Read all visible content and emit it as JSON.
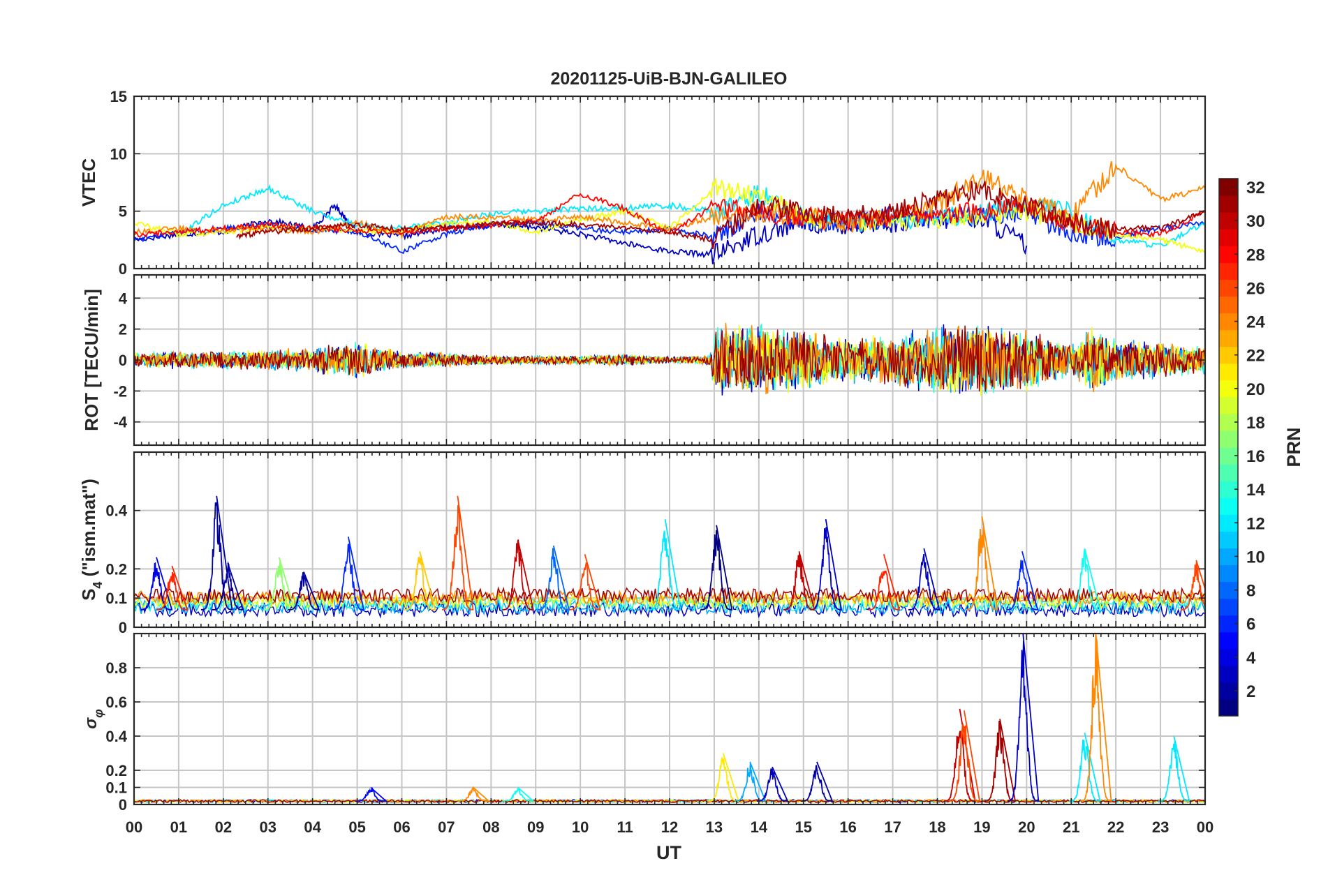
{
  "chart_data": {
    "type": "line",
    "title": "20201125-UiB-BJN-GALILEO",
    "xlabel": "UT",
    "x_tick_labels": [
      "00",
      "01",
      "02",
      "03",
      "04",
      "05",
      "06",
      "07",
      "08",
      "09",
      "10",
      "11",
      "12",
      "13",
      "14",
      "15",
      "16",
      "17",
      "18",
      "19",
      "20",
      "21",
      "22",
      "23",
      "00"
    ],
    "xlim_hours": [
      0,
      24
    ],
    "colorbar": {
      "label": "PRN",
      "colormap": "jet",
      "range": [
        1,
        32
      ],
      "tick_labels": [
        "2",
        "4",
        "6",
        "8",
        "10",
        "12",
        "14",
        "16",
        "18",
        "20",
        "22",
        "24",
        "26",
        "28",
        "30",
        "32"
      ]
    },
    "panels": [
      {
        "id": "vtec",
        "ylabel": "VTEC",
        "ylim": [
          0,
          15
        ],
        "ytick_labels": [
          "0",
          "5",
          "10",
          "15"
        ],
        "series": [
          {
            "prn": 3,
            "x": [
              0,
              1,
              2,
              3,
              4,
              4.5,
              5,
              6,
              7,
              8,
              9,
              10,
              11,
              12,
              13,
              14,
              15,
              16,
              17,
              18,
              19,
              20
            ],
            "y": [
              2.5,
              3,
              3.2,
              4.2,
              3.5,
              5.5,
              3.2,
              2.8,
              3.5,
              3.8,
              3.6,
              3,
              2.2,
              1.5,
              1.2,
              3,
              4,
              3.8,
              4,
              4.2,
              4.5,
              2
            ]
          },
          {
            "prn": 6,
            "x": [
              0,
              1,
              2,
              3,
              4,
              5,
              6,
              7,
              8,
              9,
              10,
              11,
              12,
              13,
              14,
              15,
              16,
              17,
              18,
              19,
              20,
              21,
              22,
              23,
              24
            ],
            "y": [
              2.5,
              3.2,
              3.5,
              3.8,
              3.4,
              3.2,
              1.5,
              3,
              3.8,
              4,
              3.5,
              3.2,
              3.4,
              2.8,
              5,
              4.2,
              4,
              4.5,
              4.3,
              4.6,
              5,
              3,
              2.8,
              3.5,
              4
            ]
          },
          {
            "prn": 12,
            "x": [
              1,
              2,
              3,
              4,
              5,
              6,
              7,
              8,
              9,
              10,
              11,
              12,
              13,
              14,
              15,
              16,
              17,
              18,
              19,
              20,
              21,
              22,
              23,
              24
            ],
            "y": [
              3,
              5.5,
              7,
              5,
              3.8,
              3.5,
              4,
              4.8,
              5,
              5.2,
              5.3,
              5.5,
              5,
              6.5,
              4.5,
              4,
              4.2,
              4.5,
              4.8,
              5.5,
              5,
              2.5,
              2,
              4
            ]
          },
          {
            "prn": 20,
            "x": [
              0,
              1,
              2,
              3,
              4,
              5,
              6,
              7,
              8,
              9,
              10,
              11,
              12,
              13,
              14,
              15,
              16,
              17,
              18,
              19,
              20,
              21,
              22,
              23,
              24
            ],
            "y": [
              4,
              3,
              3.2,
              3.6,
              3.5,
              3.3,
              3.3,
              4,
              4,
              3.2,
              4.2,
              5,
              3.5,
              7,
              6.5,
              4.5,
              4,
              4.2,
              4.4,
              4.6,
              5,
              4,
              3,
              2.5,
              1.5
            ]
          },
          {
            "prn": 24,
            "x": [
              0,
              1,
              2,
              3,
              4,
              5,
              6,
              7,
              8,
              9,
              10,
              11,
              12,
              13,
              14,
              15,
              16,
              17,
              18,
              19,
              20,
              21,
              22,
              23,
              24
            ],
            "y": [
              3.2,
              3.5,
              3.4,
              3.5,
              3.2,
              4,
              3,
              4.5,
              4.5,
              4.2,
              4.5,
              4,
              3.5,
              4.5,
              5,
              4.5,
              4,
              4.5,
              5.5,
              8,
              6,
              4.5,
              9,
              6,
              7
            ]
          },
          {
            "prn": 28,
            "x": [
              0,
              1,
              2,
              3,
              4,
              5,
              6,
              7,
              8,
              9,
              10,
              11,
              12,
              13,
              14,
              15,
              16,
              17,
              18,
              19,
              20,
              21,
              22,
              23,
              24
            ],
            "y": [
              3,
              3.2,
              3.5,
              3.8,
              3.6,
              3.3,
              3.2,
              3.5,
              3.8,
              4.2,
              6.5,
              5.2,
              3,
              5.5,
              5,
              4.5,
              4.2,
              4.5,
              4.8,
              5,
              5.5,
              4,
              3.2,
              3,
              5
            ]
          },
          {
            "prn": 31,
            "x": [
              2.3,
              3,
              4,
              5,
              6,
              7,
              8,
              9,
              10,
              11,
              12,
              13,
              14,
              15,
              16,
              17,
              18,
              19,
              20,
              21,
              22,
              23,
              24
            ],
            "y": [
              2.8,
              3.2,
              3.5,
              3.8,
              3.4,
              3.6,
              3.9,
              4,
              3.8,
              3.5,
              3.2,
              2.5,
              5.5,
              5,
              4.5,
              5,
              6,
              7,
              5.5,
              4,
              3.5,
              3.5,
              5
            ]
          }
        ]
      },
      {
        "id": "rot",
        "ylabel": "ROT [TECU/min]",
        "ylim": [
          -5.5,
          5.5
        ],
        "ytick_labels": [
          "-4",
          "-2",
          "0",
          "2",
          "4"
        ],
        "noise_envelope": {
          "hours": [
            0,
            1,
            2,
            3,
            4,
            5,
            6,
            7,
            8,
            9,
            10,
            11,
            12,
            12.9,
            13,
            14,
            15,
            16,
            17,
            18,
            19,
            20,
            21,
            21.5,
            22,
            23,
            24
          ],
          "amplitude": [
            0.5,
            0.6,
            0.6,
            0.7,
            0.9,
            1.2,
            0.6,
            0.5,
            0.3,
            0.3,
            0.3,
            0.4,
            0.2,
            0.3,
            2.5,
            2.5,
            2,
            1.6,
            1.8,
            2.4,
            2.6,
            2.2,
            1,
            2.5,
            1.5,
            1.2,
            1
          ]
        },
        "series": [
          {
            "prn": 3
          },
          {
            "prn": 10
          },
          {
            "prn": 14
          },
          {
            "prn": 20
          },
          {
            "prn": 24
          },
          {
            "prn": 31
          }
        ]
      },
      {
        "id": "s4",
        "ylabel": "S4 (\"ism.mat\")",
        "ylim": [
          0,
          0.6
        ],
        "ytick_labels": [
          "0",
          "0.1",
          "0.2",
          "0.4"
        ],
        "baseline": 0.06,
        "spikes": [
          {
            "prn": 4,
            "t": 0.5,
            "v": 0.24
          },
          {
            "prn": 27,
            "t": 0.85,
            "v": 0.21
          },
          {
            "prn": 2,
            "t": 1.85,
            "v": 0.45
          },
          {
            "prn": 2,
            "t": 2.1,
            "v": 0.22
          },
          {
            "prn": 17,
            "t": 3.25,
            "v": 0.24
          },
          {
            "prn": 2,
            "t": 3.8,
            "v": 0.19
          },
          {
            "prn": 6,
            "t": 4.8,
            "v": 0.31
          },
          {
            "prn": 22,
            "t": 6.4,
            "v": 0.26
          },
          {
            "prn": 26,
            "t": 7.25,
            "v": 0.45
          },
          {
            "prn": 30,
            "t": 8.6,
            "v": 0.3
          },
          {
            "prn": 8,
            "t": 9.4,
            "v": 0.28
          },
          {
            "prn": 26,
            "t": 10.1,
            "v": 0.25
          },
          {
            "prn": 12,
            "t": 11.9,
            "v": 0.37
          },
          {
            "prn": 1,
            "t": 13.05,
            "v": 0.35
          },
          {
            "prn": 3,
            "t": 15.5,
            "v": 0.37
          },
          {
            "prn": 30,
            "t": 14.9,
            "v": 0.26
          },
          {
            "prn": 27,
            "t": 16.8,
            "v": 0.25
          },
          {
            "prn": 3,
            "t": 17.7,
            "v": 0.27
          },
          {
            "prn": 24,
            "t": 19.0,
            "v": 0.38
          },
          {
            "prn": 6,
            "t": 19.9,
            "v": 0.26
          },
          {
            "prn": 13,
            "t": 21.3,
            "v": 0.27
          },
          {
            "prn": 26,
            "t": 23.8,
            "v": 0.23
          }
        ]
      },
      {
        "id": "sigma_phi",
        "ylabel": "σφ",
        "ylim": [
          0,
          1
        ],
        "ytick_labels": [
          "0",
          "0.1",
          "0.2",
          "0.4",
          "0.6",
          "0.8"
        ],
        "baseline": 0.02,
        "spikes": [
          {
            "prn": 5,
            "t": 5.3,
            "v": 0.1
          },
          {
            "prn": 24,
            "t": 7.6,
            "v": 0.1
          },
          {
            "prn": 13,
            "t": 8.6,
            "v": 0.1
          },
          {
            "prn": 21,
            "t": 13.2,
            "v": 0.3
          },
          {
            "prn": 10,
            "t": 13.8,
            "v": 0.25
          },
          {
            "prn": 3,
            "t": 14.3,
            "v": 0.22
          },
          {
            "prn": 2,
            "t": 15.3,
            "v": 0.25
          },
          {
            "prn": 30,
            "t": 18.5,
            "v": 0.56
          },
          {
            "prn": 26,
            "t": 18.6,
            "v": 0.55
          },
          {
            "prn": 31,
            "t": 19.4,
            "v": 0.5
          },
          {
            "prn": 3,
            "t": 19.92,
            "v": 1.0
          },
          {
            "prn": 12,
            "t": 21.3,
            "v": 0.42
          },
          {
            "prn": 24,
            "t": 21.55,
            "v": 1.0
          },
          {
            "prn": 12,
            "t": 23.3,
            "v": 0.4
          }
        ]
      }
    ]
  }
}
